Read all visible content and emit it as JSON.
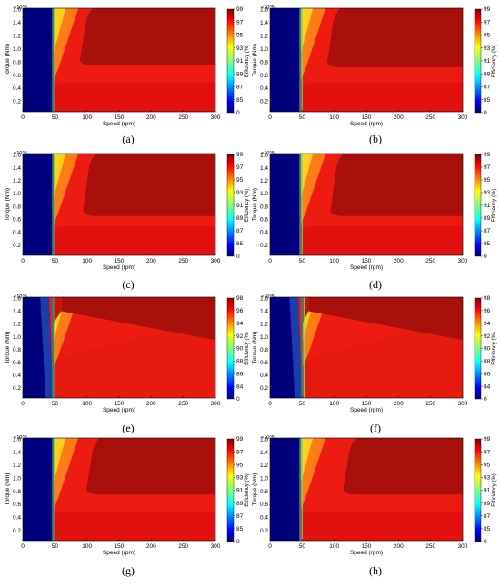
{
  "figure": {
    "common": {
      "exponent": "×10^5",
      "xlabel": "Speed (rpm)",
      "ylabel": "Torque (Nm)",
      "cbar_label": "Efficiency (%)",
      "xticks": [
        "0",
        "50",
        "100",
        "150",
        "200",
        "250",
        "300"
      ],
      "yticks": [
        "0.2",
        "0.4",
        "0.6",
        "0.8",
        "1.0",
        "1.2",
        "1.4",
        "1.6"
      ],
      "xlim": [
        0,
        300
      ],
      "ylim": [
        0.04,
        1.62
      ]
    }
  },
  "chart_data": [
    {
      "type": "heatmap",
      "panel": "(a)",
      "xlabel": "Speed (rpm)",
      "ylabel": "Torque (Nm)",
      "colorbar_label": "Efficiency (%)",
      "x_ticks": [
        0,
        50,
        100,
        150,
        200,
        250,
        300
      ],
      "y_ticks": [
        0.2,
        0.4,
        0.6,
        0.8,
        1.0,
        1.2,
        1.4,
        1.6
      ],
      "y_scale_factor": "×10^5",
      "xlim": [
        0,
        300
      ],
      "ylim": [
        0.04,
        1.62
      ],
      "colorbar_ticks": [
        99,
        97,
        95,
        93,
        91,
        89,
        87,
        85,
        0
      ],
      "colorbar_range": [
        0,
        99
      ],
      "low_speed_boundary_rpm": 47,
      "peak_efficiency_region": {
        "min_speed_rpm": 90,
        "min_torque": 0.75,
        "efficiency_pct": 99
      }
    },
    {
      "type": "heatmap",
      "panel": "(b)",
      "xlabel": "Speed (rpm)",
      "ylabel": "Torque (Nm)",
      "colorbar_label": "Efficiency (%)",
      "x_ticks": [
        0,
        50,
        100,
        150,
        200,
        250,
        300
      ],
      "y_ticks": [
        0.2,
        0.4,
        0.6,
        0.8,
        1.0,
        1.2,
        1.4,
        1.6
      ],
      "y_scale_factor": "×10^5",
      "xlim": [
        0,
        300
      ],
      "ylim": [
        0.04,
        1.62
      ],
      "colorbar_ticks": [
        99,
        97,
        95,
        93,
        91,
        89,
        87,
        85,
        0
      ],
      "colorbar_range": [
        0,
        99
      ],
      "low_speed_boundary_rpm": 47,
      "peak_efficiency_region": {
        "min_speed_rpm": 90,
        "min_torque": 0.72,
        "efficiency_pct": 99
      }
    },
    {
      "type": "heatmap",
      "panel": "(c)",
      "xlabel": "Speed (rpm)",
      "ylabel": "Torque (Nm)",
      "colorbar_label": "Efficiency (%)",
      "x_ticks": [
        0,
        50,
        100,
        150,
        200,
        250,
        300
      ],
      "y_ticks": [
        0.2,
        0.4,
        0.6,
        0.8,
        1.0,
        1.2,
        1.4,
        1.6
      ],
      "y_scale_factor": "×10^5",
      "xlim": [
        0,
        300
      ],
      "ylim": [
        0.04,
        1.62
      ],
      "colorbar_ticks": [
        99,
        97,
        95,
        93,
        91,
        89,
        87,
        85,
        0
      ],
      "colorbar_range": [
        0,
        99
      ],
      "low_speed_boundary_rpm": 47,
      "peak_efficiency_region": {
        "min_speed_rpm": 95,
        "min_torque": 0.65,
        "efficiency_pct": 99
      }
    },
    {
      "type": "heatmap",
      "panel": "(d)",
      "xlabel": "Speed (rpm)",
      "ylabel": "Torque (Nm)",
      "colorbar_label": "Efficiency (%)",
      "x_ticks": [
        0,
        50,
        100,
        150,
        200,
        250,
        300
      ],
      "y_ticks": [
        0.2,
        0.4,
        0.6,
        0.8,
        1.0,
        1.2,
        1.4,
        1.6
      ],
      "y_scale_factor": "×10^5",
      "xlim": [
        0,
        300
      ],
      "ylim": [
        0.04,
        1.62
      ],
      "colorbar_ticks": [
        99,
        97,
        95,
        93,
        91,
        89,
        87,
        85,
        0
      ],
      "colorbar_range": [
        0,
        99
      ],
      "low_speed_boundary_rpm": 47,
      "peak_efficiency_region": {
        "min_speed_rpm": 95,
        "min_torque": 0.65,
        "efficiency_pct": 99
      }
    },
    {
      "type": "heatmap",
      "panel": "(e)",
      "xlabel": "Speed (rpm)",
      "ylabel": "Torque (Nm)",
      "colorbar_label": "Efficiency (%)",
      "x_ticks": [
        0,
        50,
        100,
        150,
        200,
        250,
        300
      ],
      "y_ticks": [
        0.2,
        0.4,
        0.6,
        0.8,
        1.0,
        1.2,
        1.4,
        1.6
      ],
      "y_scale_factor": "×10^5",
      "xlim": [
        0,
        300
      ],
      "ylim": [
        0.04,
        1.62
      ],
      "colorbar_ticks": [
        98,
        96,
        94,
        92,
        90,
        88,
        86,
        84,
        0
      ],
      "colorbar_range": [
        0,
        98
      ],
      "low_speed_boundary_rpm": 47,
      "peak_efficiency_region": {
        "min_speed_rpm": 60,
        "min_torque": 0.95,
        "efficiency_pct": 98
      }
    },
    {
      "type": "heatmap",
      "panel": "(f)",
      "xlabel": "Speed (rpm)",
      "ylabel": "Torque (Nm)",
      "colorbar_label": "Efficiency (%)",
      "x_ticks": [
        0,
        50,
        100,
        150,
        200,
        250,
        300
      ],
      "y_ticks": [
        0.2,
        0.4,
        0.6,
        0.8,
        1.0,
        1.2,
        1.4,
        1.6
      ],
      "y_scale_factor": "×10^5",
      "xlim": [
        0,
        300
      ],
      "ylim": [
        0.04,
        1.62
      ],
      "colorbar_ticks": [
        98,
        96,
        94,
        92,
        90,
        88,
        86,
        84,
        0
      ],
      "colorbar_range": [
        0,
        98
      ],
      "low_speed_boundary_rpm": 50,
      "peak_efficiency_region": {
        "min_speed_rpm": 60,
        "min_torque": 0.95,
        "efficiency_pct": 98
      }
    },
    {
      "type": "heatmap",
      "panel": "(g)",
      "xlabel": "Speed (rpm)",
      "ylabel": "Torque (Nm)",
      "colorbar_label": "Efficiency (%)",
      "x_ticks": [
        0,
        50,
        100,
        150,
        200,
        250,
        300
      ],
      "y_ticks": [
        0.2,
        0.4,
        0.6,
        0.8,
        1.0,
        1.2,
        1.4,
        1.6
      ],
      "y_scale_factor": "×10^5",
      "xlim": [
        0,
        300
      ],
      "ylim": [
        0.04,
        1.62
      ],
      "colorbar_ticks": [
        99,
        97,
        95,
        93,
        91,
        89,
        87,
        85,
        0
      ],
      "colorbar_range": [
        0,
        99
      ],
      "low_speed_boundary_rpm": 47,
      "peak_efficiency_region": {
        "min_speed_rpm": 100,
        "min_torque": 0.75,
        "efficiency_pct": 99
      }
    },
    {
      "type": "heatmap",
      "panel": "(h)",
      "xlabel": "Speed (rpm)",
      "ylabel": "Torque (Nm)",
      "colorbar_label": "Efficiency (%)",
      "x_ticks": [
        0,
        50,
        100,
        150,
        200,
        250,
        300
      ],
      "y_ticks": [
        0.2,
        0.4,
        0.6,
        0.8,
        1.0,
        1.2,
        1.4,
        1.6
      ],
      "y_scale_factor": "×10^5",
      "xlim": [
        0,
        300
      ],
      "ylim": [
        0.04,
        1.62
      ],
      "colorbar_ticks": [
        99,
        97,
        95,
        93,
        91,
        89,
        87,
        85,
        0
      ],
      "colorbar_range": [
        0,
        99
      ],
      "low_speed_boundary_rpm": 47,
      "peak_efficiency_region": {
        "min_speed_rpm": 115,
        "min_torque": 0.75,
        "efficiency_pct": 99
      }
    }
  ]
}
